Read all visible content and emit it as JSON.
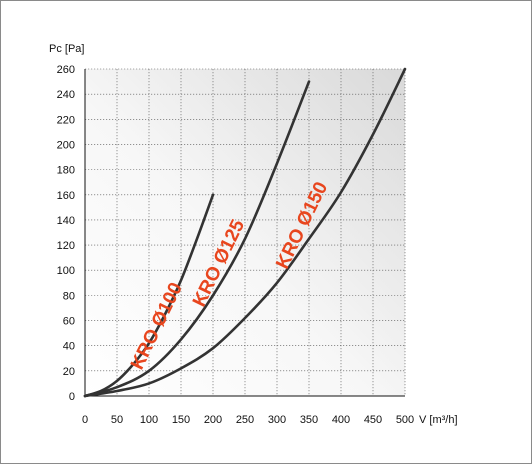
{
  "chart_data": {
    "type": "line",
    "title": "",
    "xlabel": "V [m³/h]",
    "ylabel": "Pc [Pa]",
    "xlim": [
      0,
      500
    ],
    "ylim": [
      0,
      260
    ],
    "xticks": [
      0,
      50,
      100,
      150,
      200,
      250,
      300,
      350,
      400,
      450,
      500
    ],
    "yticks": [
      0,
      20,
      40,
      60,
      80,
      100,
      120,
      140,
      160,
      180,
      200,
      220,
      240,
      260
    ],
    "grid": true,
    "legend": "none",
    "series": [
      {
        "name": "KRO Ø100",
        "x": [
          0,
          25,
          50,
          75,
          100,
          125,
          150,
          175,
          200
        ],
        "y": [
          0,
          4,
          12,
          25,
          42,
          65,
          92,
          125,
          160
        ]
      },
      {
        "name": "KRO Ø125",
        "x": [
          0,
          50,
          100,
          150,
          200,
          250,
          300,
          350
        ],
        "y": [
          0,
          7,
          20,
          45,
          80,
          125,
          185,
          250
        ]
      },
      {
        "name": "KRO Ø150",
        "x": [
          0,
          50,
          100,
          150,
          200,
          250,
          300,
          350,
          400,
          450,
          500
        ],
        "y": [
          0,
          4,
          10,
          22,
          38,
          62,
          90,
          125,
          162,
          208,
          260
        ]
      }
    ]
  }
}
